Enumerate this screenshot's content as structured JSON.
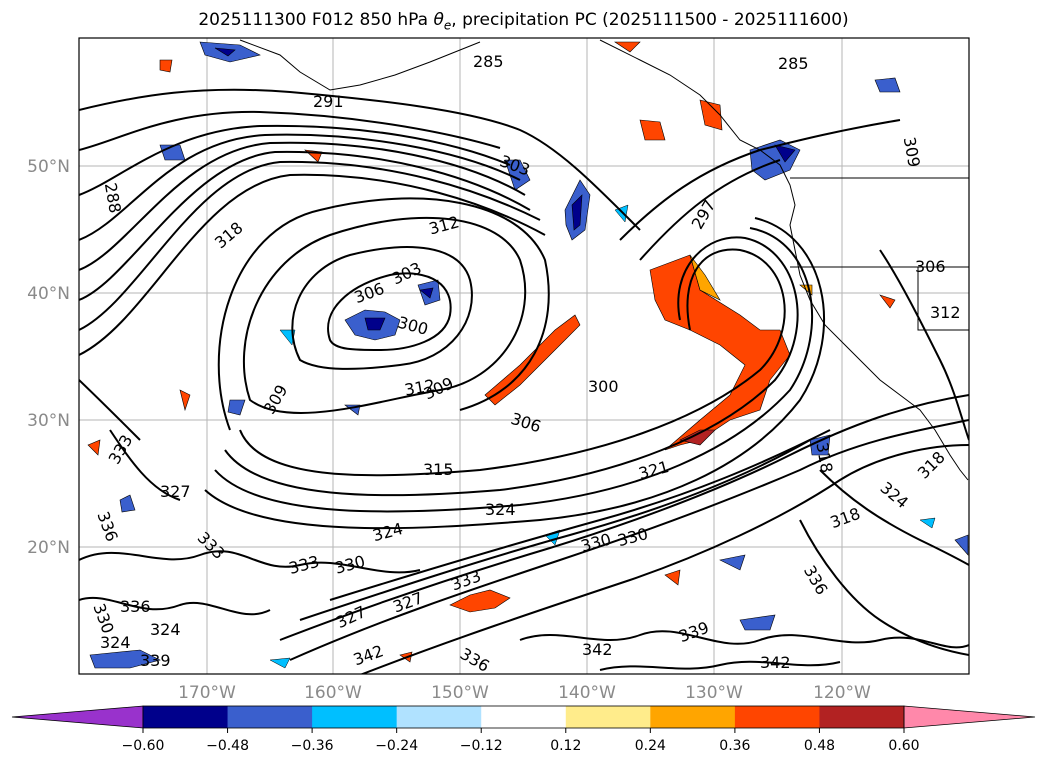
{
  "title": {
    "prefix": "2025111300 F012 850 hPa ",
    "theta": "θ",
    "theta_sub": "e",
    "suffix": ", precipitation PC (2025111500 - 2025111600)"
  },
  "axes": {
    "lat_labels": [
      "50°N",
      "40°N",
      "30°N",
      "20°N"
    ],
    "lon_labels": [
      "170°W",
      "160°W",
      "150°W",
      "140°W",
      "130°W",
      "120°W"
    ]
  },
  "contour_labels": [
    "285",
    "285",
    "291",
    "288",
    "303",
    "312",
    "318",
    "306",
    "303",
    "300",
    "309",
    "312",
    "309",
    "300",
    "306",
    "315",
    "321",
    "333",
    "327",
    "336",
    "324",
    "324",
    "333",
    "330",
    "330",
    "333",
    "327",
    "324",
    "336",
    "342",
    "339",
    "342",
    "336",
    "318",
    "318",
    "324",
    "318",
    "309",
    "312",
    "306",
    "297",
    "342",
    "330",
    "330",
    "324",
    "336",
    "333",
    "327",
    "339"
  ],
  "colorbar": {
    "colors": [
      "#9932cc",
      "#00008b",
      "#3a5fcd",
      "#00bfff",
      "#b0e2ff",
      "#ffffff",
      "#ffec8b",
      "#ffa500",
      "#ff4500",
      "#b22222",
      "#ff88aa"
    ],
    "tick_labels": [
      "−0.60",
      "−0.48",
      "−0.36",
      "−0.24",
      "−0.12",
      "0.12",
      "0.24",
      "0.36",
      "0.48",
      "0.60"
    ]
  },
  "chart_data": {
    "type": "heatmap",
    "variable_contours": "850 hPa theta-e",
    "variable_shaded": "precipitation PC",
    "contour_levels": [
      285,
      288,
      291,
      297,
      300,
      303,
      306,
      309,
      312,
      315,
      318,
      321,
      324,
      327,
      330,
      333,
      336,
      339,
      342
    ],
    "shading_bounds": [
      -0.6,
      -0.48,
      -0.36,
      -0.24,
      -0.12,
      0.12,
      0.24,
      0.36,
      0.48,
      0.6
    ],
    "lat_ticks": [
      50,
      40,
      30,
      20
    ],
    "lon_ticks": [
      -170,
      -160,
      -150,
      -140,
      -130,
      -120
    ]
  }
}
